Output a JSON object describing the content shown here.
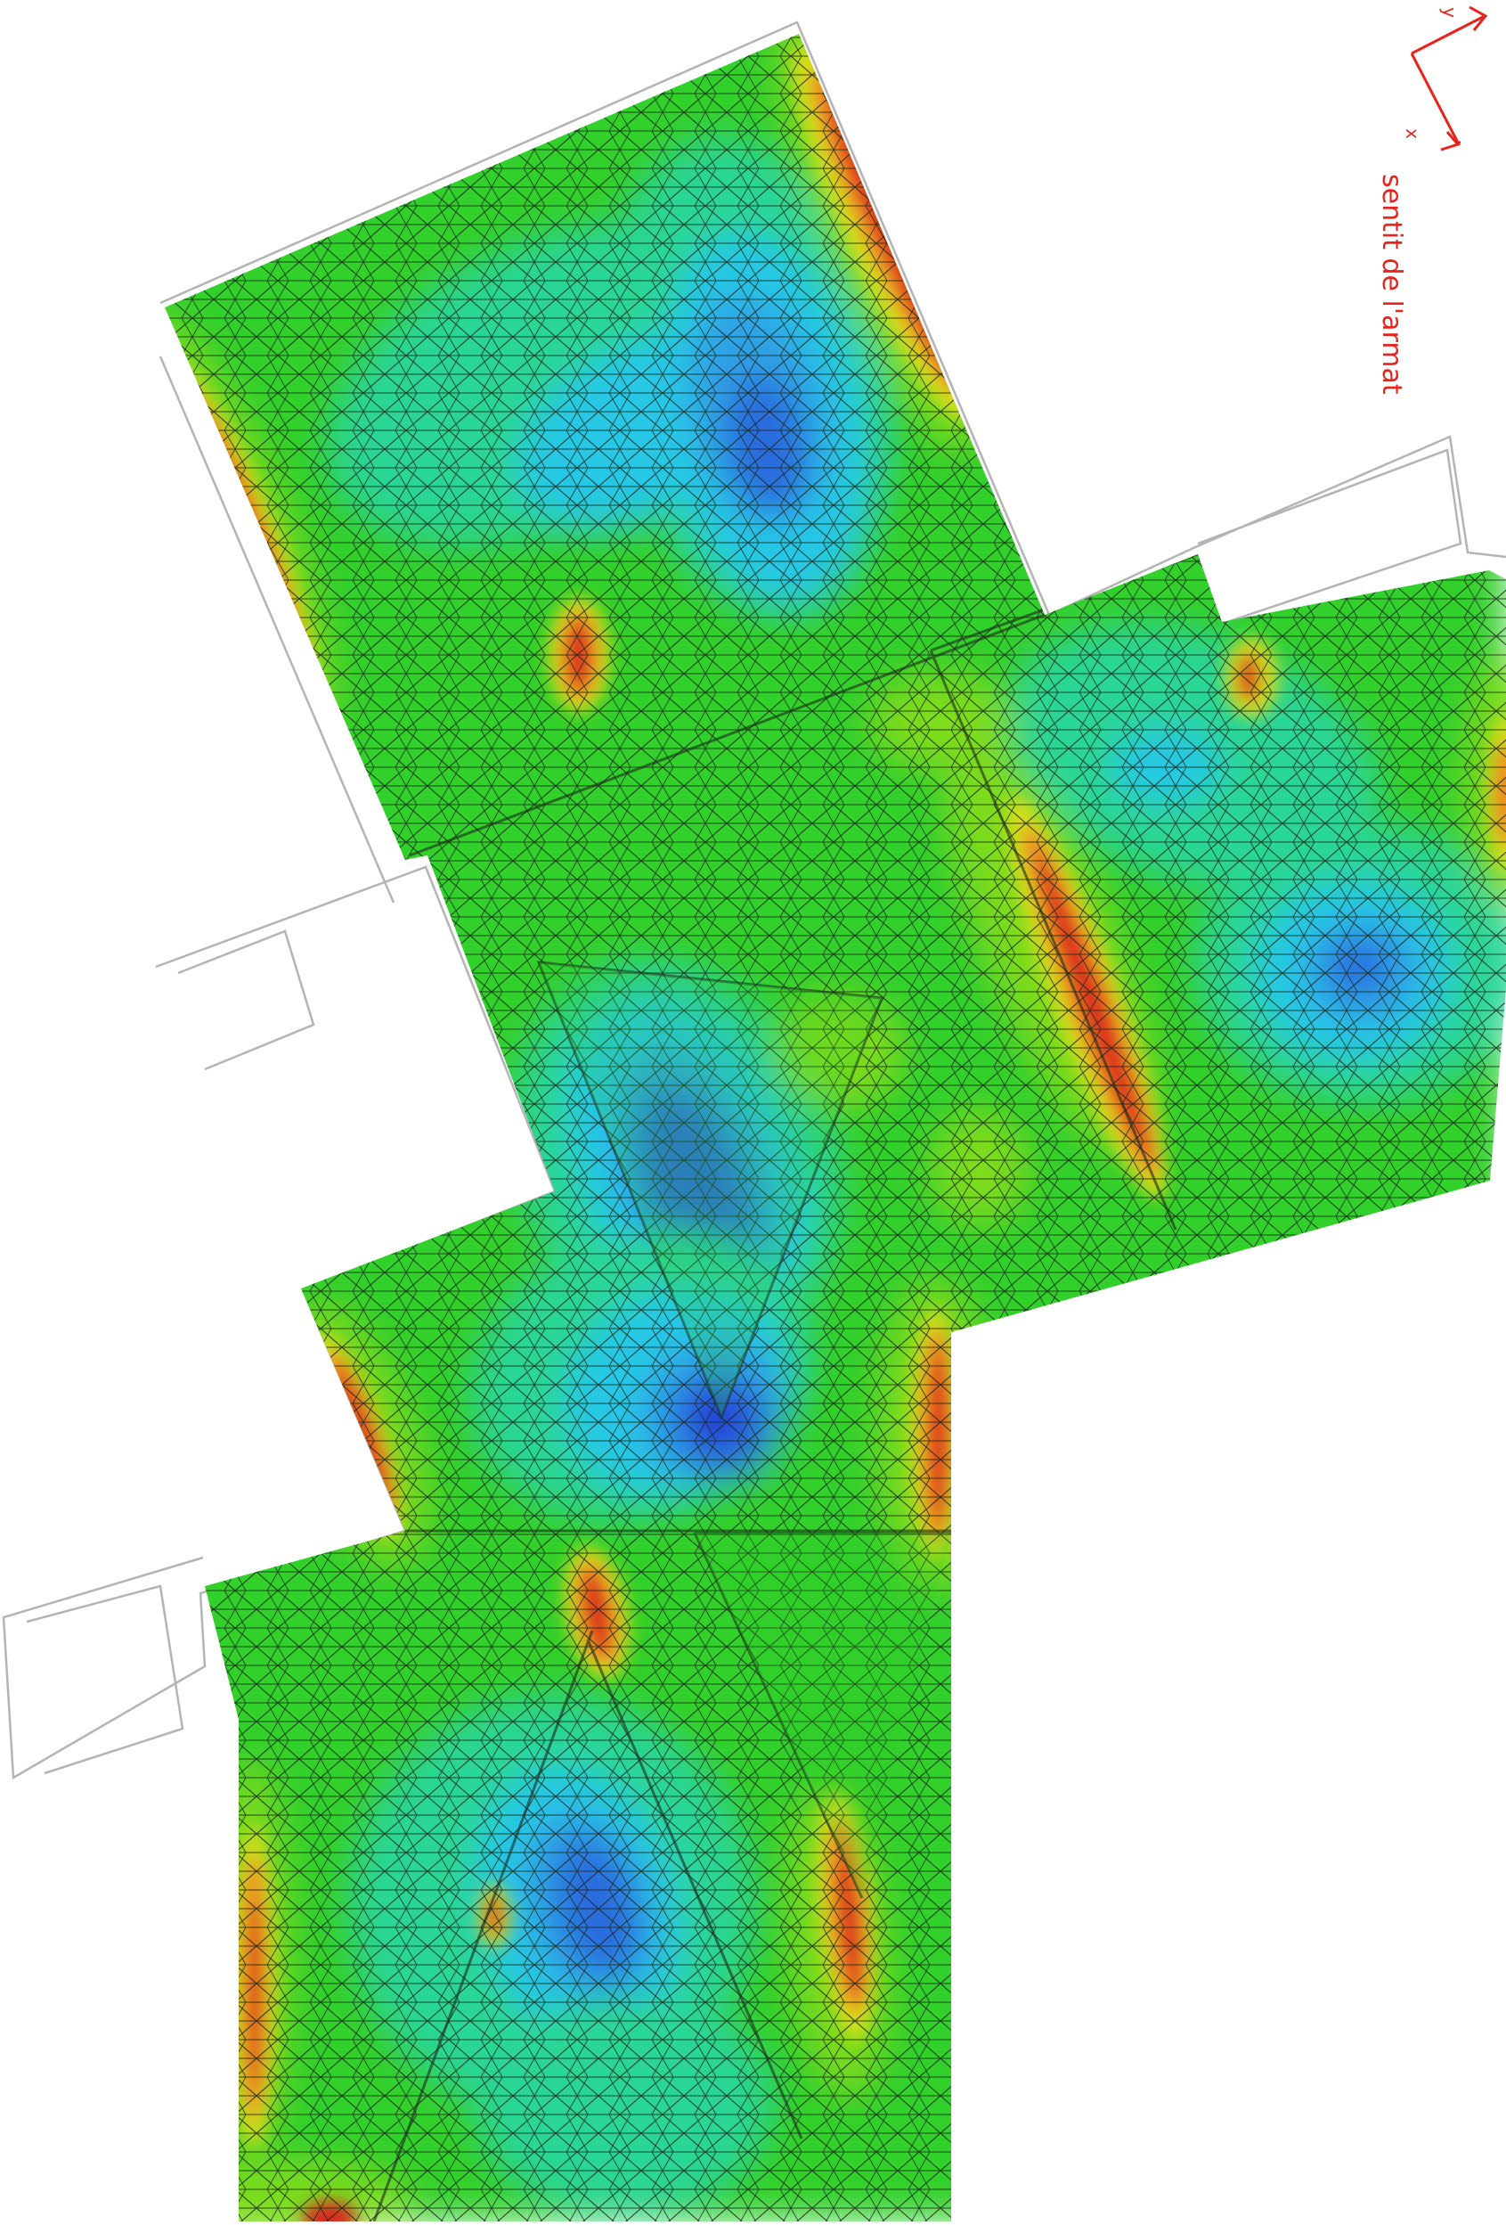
{
  "legend": {
    "axis_x": "x",
    "axis_y": "y",
    "caption": "sentit de l'armat",
    "color": "#e8231c"
  },
  "palette": {
    "red": "#d8261c",
    "orange": "#f07b22",
    "yellow": "#d7de1a",
    "light_green": "#7ddc1c",
    "green": "#30d02a",
    "teal": "#2bd696",
    "cyan": "#27c8e6",
    "light_blue": "#2fa2e6",
    "blue": "#2b6bde",
    "dark_blue": "#2438d6",
    "mesh_line": "#1b2a1b",
    "outline": "#b4b4b4"
  }
}
